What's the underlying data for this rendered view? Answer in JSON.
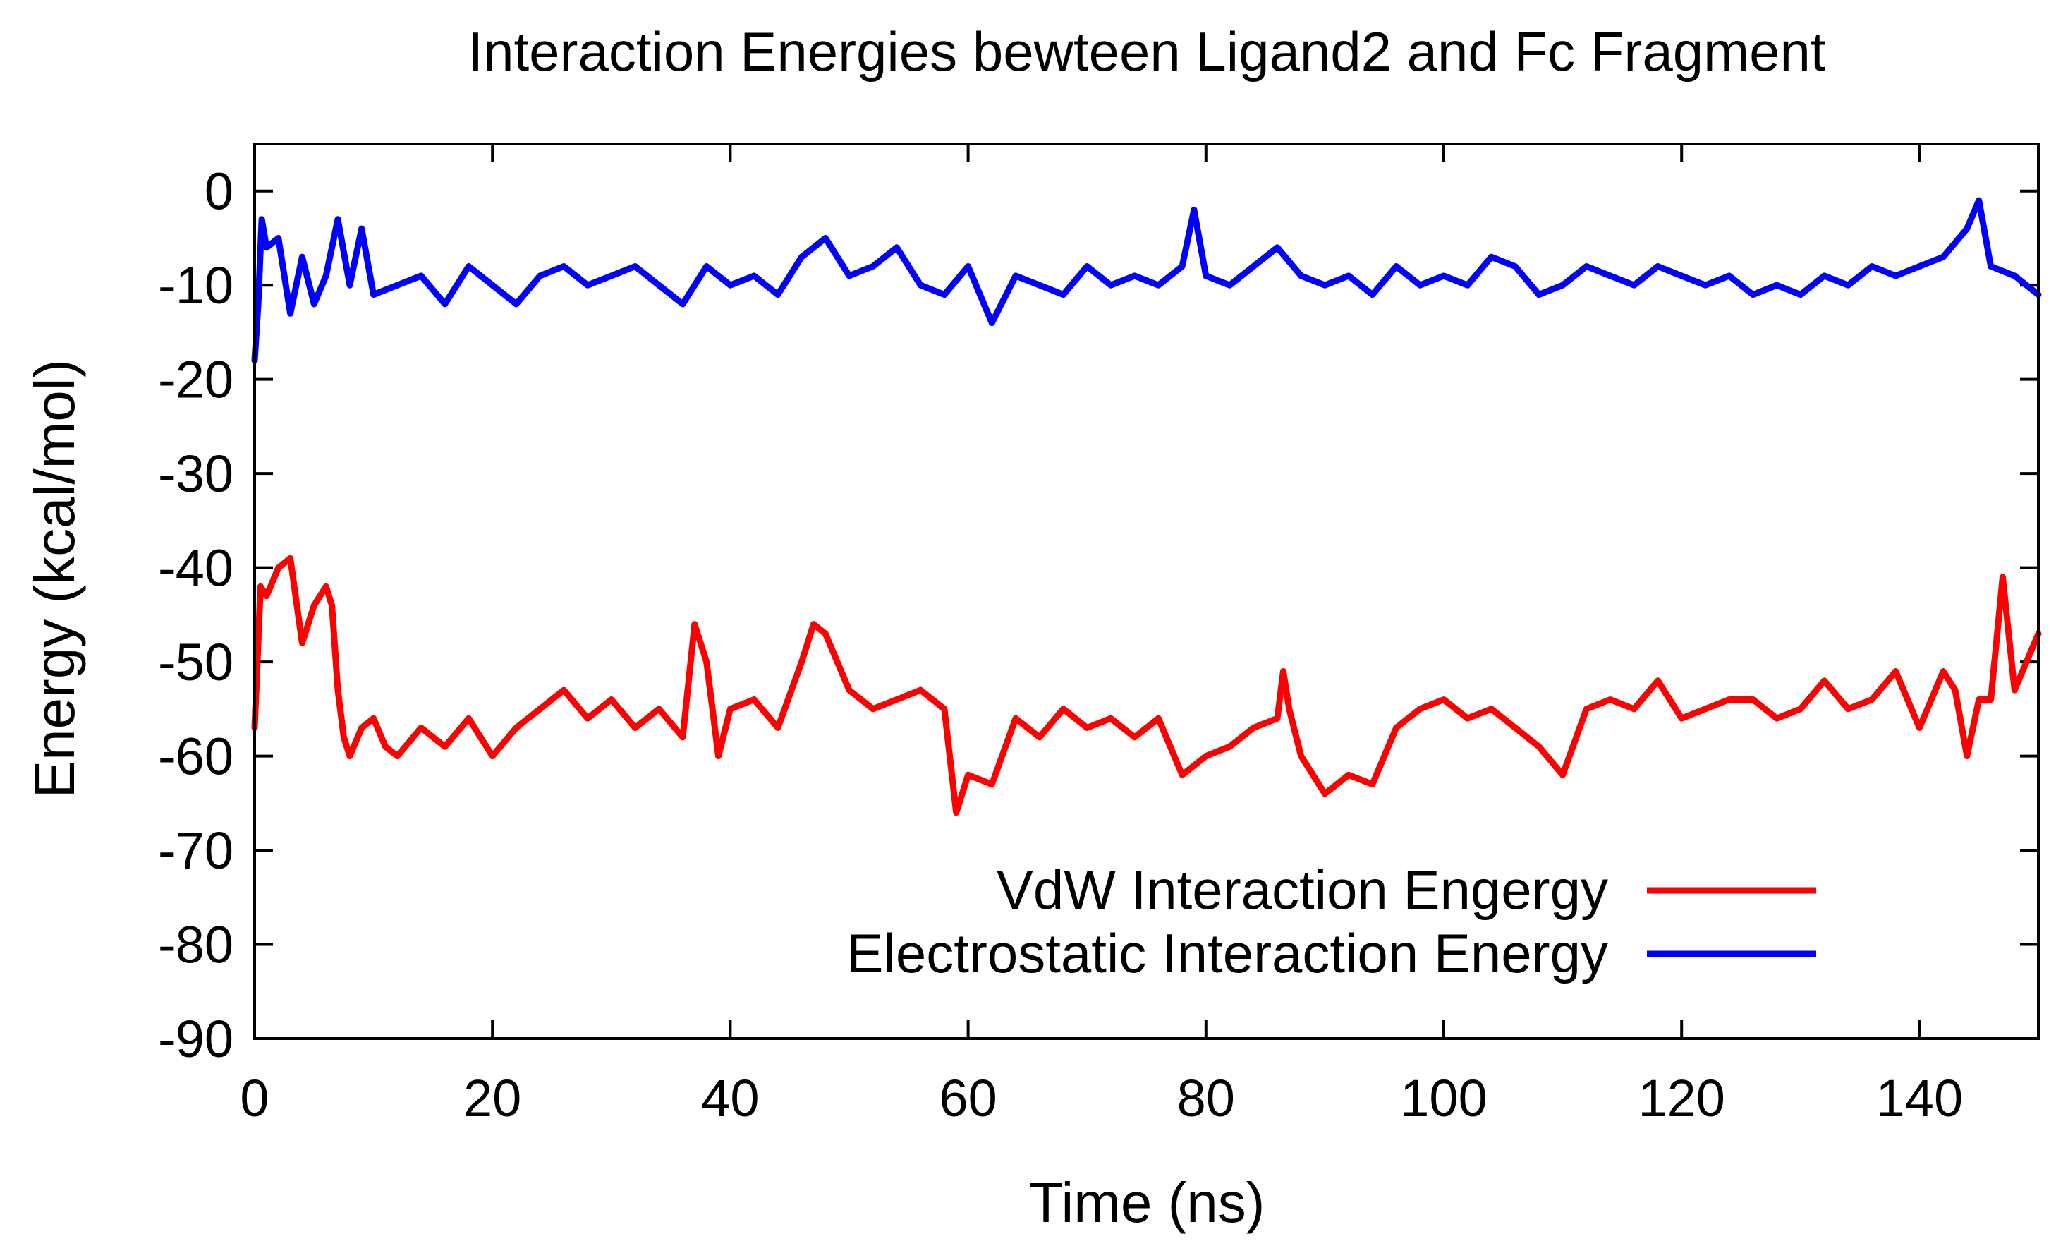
{
  "chart_data": {
    "type": "line",
    "title": "Interaction Energies bewteen Ligand2 and Fc Fragment",
    "xlabel": "Time (ns)",
    "ylabel": "Energy (kcal/mol)",
    "xlim": [
      0,
      150
    ],
    "ylim": [
      -90,
      5
    ],
    "x_ticks": [
      0,
      20,
      40,
      60,
      80,
      100,
      120,
      140
    ],
    "y_ticks": [
      0,
      -10,
      -20,
      -30,
      -40,
      -50,
      -60,
      -70,
      -80,
      -90
    ],
    "x_tick_labels": [
      "0",
      "20",
      "40",
      "60",
      "80",
      "100",
      "120",
      "140"
    ],
    "y_tick_labels": [
      "0",
      "-10",
      "-20",
      "-30",
      "-40",
      "-50",
      "-60",
      "-70",
      "-80",
      "-90"
    ],
    "grid": false,
    "legend_position": "bottom-right",
    "series": [
      {
        "name": "VdW Interaction Engergy",
        "color": "#ff0000",
        "x": [
          0,
          0.5,
          1,
          2,
          3,
          4,
          5,
          6,
          6.5,
          7,
          7.5,
          8,
          9,
          10,
          11,
          12,
          14,
          16,
          18,
          20,
          22,
          24,
          26,
          28,
          30,
          32,
          34,
          36,
          37,
          38,
          39,
          40,
          42,
          44,
          46,
          47,
          48,
          49,
          50,
          52,
          54,
          56,
          58,
          59,
          60,
          62,
          64,
          66,
          68,
          70,
          72,
          74,
          76,
          78,
          80,
          82,
          84,
          86,
          86.5,
          87,
          88,
          90,
          92,
          94,
          96,
          98,
          100,
          102,
          104,
          106,
          108,
          110,
          112,
          114,
          116,
          118,
          120,
          122,
          124,
          126,
          128,
          130,
          132,
          134,
          136,
          138,
          140,
          142,
          143,
          144,
          145,
          146,
          147,
          148,
          150
        ],
        "values": [
          -57,
          -42,
          -43,
          -40,
          -39,
          -48,
          -44,
          -42,
          -44,
          -53,
          -58,
          -60,
          -57,
          -56,
          -59,
          -60,
          -57,
          -59,
          -56,
          -60,
          -57,
          -55,
          -53,
          -56,
          -54,
          -57,
          -55,
          -58,
          -46,
          -50,
          -60,
          -55,
          -54,
          -57,
          -50,
          -46,
          -47,
          -50,
          -53,
          -55,
          -54,
          -53,
          -55,
          -66,
          -62,
          -63,
          -56,
          -58,
          -55,
          -57,
          -56,
          -58,
          -56,
          -62,
          -60,
          -59,
          -57,
          -56,
          -51,
          -55,
          -60,
          -64,
          -62,
          -63,
          -57,
          -55,
          -54,
          -56,
          -55,
          -57,
          -59,
          -62,
          -55,
          -54,
          -55,
          -52,
          -56,
          -55,
          -54,
          -54,
          -56,
          -55,
          -52,
          -55,
          -54,
          -51,
          -57,
          -51,
          -53,
          -60,
          -54,
          -54,
          -41,
          -53,
          -47
        ]
      },
      {
        "name": "Electrostatic Interaction Energy",
        "color": "#0000ff",
        "x": [
          0,
          0.3,
          0.6,
          1,
          2,
          3,
          4,
          5,
          6,
          7,
          8,
          9,
          10,
          12,
          14,
          16,
          18,
          20,
          22,
          24,
          26,
          28,
          30,
          32,
          34,
          36,
          38,
          40,
          42,
          44,
          46,
          48,
          50,
          52,
          54,
          56,
          58,
          60,
          62,
          64,
          66,
          68,
          70,
          72,
          74,
          76,
          78,
          79,
          80,
          82,
          84,
          86,
          88,
          90,
          92,
          94,
          96,
          98,
          100,
          102,
          104,
          106,
          108,
          110,
          112,
          114,
          116,
          118,
          120,
          122,
          124,
          126,
          128,
          130,
          132,
          134,
          136,
          138,
          140,
          142,
          144,
          145,
          146,
          148,
          150
        ],
        "values": [
          -18,
          -12,
          -3,
          -6,
          -5,
          -13,
          -7,
          -12,
          -9,
          -3,
          -10,
          -4,
          -11,
          -10,
          -9,
          -12,
          -8,
          -10,
          -12,
          -9,
          -8,
          -10,
          -9,
          -8,
          -10,
          -12,
          -8,
          -10,
          -9,
          -11,
          -7,
          -5,
          -9,
          -8,
          -6,
          -10,
          -11,
          -8,
          -14,
          -9,
          -10,
          -11,
          -8,
          -10,
          -9,
          -10,
          -8,
          -2,
          -9,
          -10,
          -8,
          -6,
          -9,
          -10,
          -9,
          -11,
          -8,
          -10,
          -9,
          -10,
          -7,
          -8,
          -11,
          -10,
          -8,
          -9,
          -10,
          -8,
          -9,
          -10,
          -9,
          -11,
          -10,
          -11,
          -9,
          -10,
          -8,
          -9,
          -8,
          -7,
          -4,
          -1,
          -8,
          -9,
          -11
        ]
      }
    ]
  }
}
